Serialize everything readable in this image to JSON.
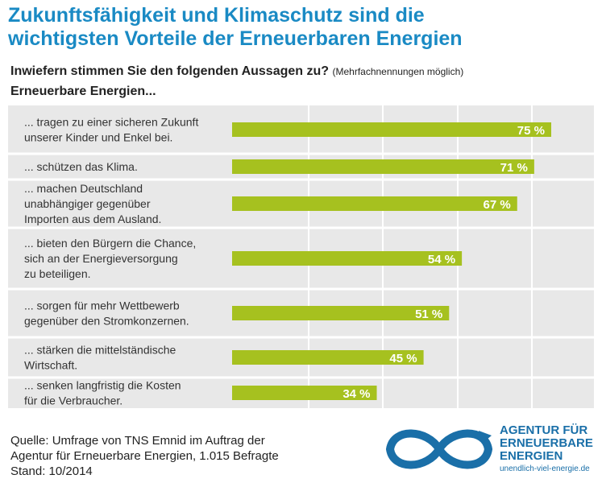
{
  "header": {
    "title_line1": "Zukunftsfähigkeit und Klimaschutz sind die",
    "title_line2": "wichtigsten Vorteile der Erneuerbaren Energien",
    "question": "Inwiefern stimmen Sie den folgenden Aussagen zu?",
    "note": "(Mehrfachnennungen möglich)",
    "intro": "Erneuerbare Energien..."
  },
  "chart_data": {
    "type": "bar",
    "orientation": "horizontal",
    "categories": [
      [
        "... tragen zu einer sicheren Zukunft",
        "unserer Kinder und Enkel bei."
      ],
      [
        "... schützen das Klima."
      ],
      [
        "... machen Deutschland",
        "unabhängiger gegenüber",
        "Importen aus dem Ausland."
      ],
      [
        "... bieten den Bürgern die Chance,",
        "sich an der Energieversorgung",
        "zu beteiligen."
      ],
      [
        "... sorgen für mehr Wettbewerb",
        "gegenüber den Stromkonzernen."
      ],
      [
        "... stärken die mittelständische",
        "Wirtschaft."
      ],
      [
        "... senken langfristig die Kosten",
        "für die Verbraucher."
      ]
    ],
    "values": [
      75,
      71,
      67,
      54,
      51,
      45,
      34
    ],
    "value_labels": [
      "75 %",
      "71 %",
      "67 %",
      "54 %",
      "51 %",
      "45 %",
      "34 %"
    ],
    "xlim": [
      0,
      85
    ],
    "grid": true,
    "colors": {
      "bar": "#a6c11f",
      "grid": "#ffffff",
      "background": "#e8e8e8",
      "label": "#ffffff"
    }
  },
  "footer": {
    "source_line1": "Quelle: Umfrage von TNS Emnid im Auftrag der",
    "source_line2": "Agentur für Erneuerbare Energien, 1.015 Befragte",
    "source_line3": "Stand: 10/2014"
  },
  "logo": {
    "line1": "AGENTUR FÜR",
    "line2": "ERNEUERBARE",
    "line3": "ENERGIEN",
    "url": "unendlich-viel-energie.de",
    "color": "#1a6fa8"
  }
}
